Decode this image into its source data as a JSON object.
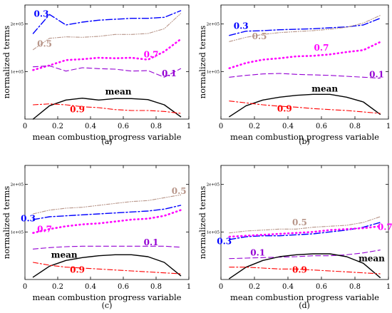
{
  "figure": {
    "xlabel": "mean combustion progress variable",
    "ylabel": "normalized terms",
    "x_ticks": [
      "0",
      "0.2",
      "0.4",
      "0.6",
      "0.8",
      "1"
    ],
    "y_ticks": [
      "1e+05",
      "2e+05"
    ],
    "colors": {
      "mean": "#000000",
      "0.1": "#9400d3",
      "0.3": "#0000ff",
      "0.5": "#b8968a",
      "0.7": "#ff00ff",
      "0.9": "#ff0000"
    }
  },
  "chart_data": [
    {
      "type": "line",
      "panel": "(a)",
      "xlabel": "mean combustion progress variable",
      "ylabel": "normalized terms",
      "xlim": [
        0,
        1
      ],
      "ylim": [
        0,
        240000
      ],
      "series": [
        {
          "name": "0.3",
          "x": [
            0.05,
            0.15,
            0.25,
            0.35,
            0.45,
            0.55,
            0.65,
            0.75,
            0.85,
            0.95
          ],
          "values": [
            180000,
            220000,
            198000,
            204000,
            208000,
            210000,
            212000,
            212000,
            214000,
            228000
          ]
        },
        {
          "name": "0.5",
          "x": [
            0.05,
            0.15,
            0.25,
            0.35,
            0.45,
            0.55,
            0.65,
            0.75,
            0.85,
            0.95
          ],
          "values": [
            146000,
            170000,
            173000,
            172000,
            174000,
            178000,
            178000,
            180000,
            190000,
            222000
          ]
        },
        {
          "name": "0.7",
          "x": [
            0.05,
            0.15,
            0.25,
            0.35,
            0.45,
            0.55,
            0.65,
            0.75,
            0.85,
            0.95
          ],
          "values": [
            103000,
            113000,
            124000,
            126000,
            129000,
            128000,
            129000,
            125000,
            142000,
            168000
          ]
        },
        {
          "name": "0.1",
          "x": [
            0.05,
            0.15,
            0.25,
            0.35,
            0.45,
            0.55,
            0.65,
            0.75,
            0.85,
            0.95
          ],
          "values": [
            110000,
            112000,
            101000,
            108000,
            106000,
            105000,
            101000,
            102000,
            88000,
            106000
          ]
        },
        {
          "name": "mean",
          "x": [
            0.05,
            0.15,
            0.25,
            0.35,
            0.45,
            0.55,
            0.65,
            0.75,
            0.85,
            0.95
          ],
          "values": [
            0,
            28000,
            40000,
            44000,
            40000,
            43000,
            43000,
            41000,
            30000,
            5000
          ]
        },
        {
          "name": "0.9",
          "x": [
            0.05,
            0.15,
            0.25,
            0.35,
            0.45,
            0.55,
            0.65,
            0.75,
            0.85,
            0.95
          ],
          "values": [
            30000,
            32000,
            30000,
            26000,
            24000,
            20000,
            18000,
            18000,
            16000,
            12000
          ]
        }
      ],
      "labels": [
        {
          "text": "0.3",
          "series": "0.3",
          "x": 0.1,
          "y": 215000
        },
        {
          "text": "0.5",
          "series": "0.5",
          "x": 0.12,
          "y": 152000
        },
        {
          "text": "0.7",
          "series": "0.7",
          "x": 0.77,
          "y": 130000
        },
        {
          "text": "0.1",
          "series": "0.1",
          "x": 0.88,
          "y": 90000
        },
        {
          "text": "mean",
          "series": "mean",
          "x": 0.57,
          "y": 52000
        },
        {
          "text": "0.9",
          "series": "0.9",
          "x": 0.32,
          "y": 14000
        }
      ]
    },
    {
      "type": "line",
      "panel": "(b)",
      "xlabel": "mean combustion progress variable",
      "ylabel": "normalized terms",
      "xlim": [
        0,
        1
      ],
      "ylim": [
        0,
        240000
      ],
      "series": [
        {
          "name": "0.3",
          "x": [
            0.05,
            0.15,
            0.25,
            0.35,
            0.45,
            0.55,
            0.65,
            0.75,
            0.85,
            0.95
          ],
          "values": [
            176000,
            185000,
            186000,
            188000,
            189000,
            190000,
            192000,
            194000,
            198000,
            212000
          ]
        },
        {
          "name": "0.5",
          "x": [
            0.05,
            0.15,
            0.25,
            0.35,
            0.45,
            0.55,
            0.65,
            0.75,
            0.85,
            0.95
          ],
          "values": [
            163000,
            172000,
            178000,
            182000,
            184000,
            186000,
            189000,
            193000,
            202000,
            218000
          ]
        },
        {
          "name": "0.7",
          "x": [
            0.05,
            0.15,
            0.25,
            0.35,
            0.45,
            0.55,
            0.65,
            0.75,
            0.85,
            0.95
          ],
          "values": [
            107000,
            118000,
            125000,
            128000,
            132000,
            133000,
            136000,
            141000,
            145000,
            162000
          ]
        },
        {
          "name": "0.1",
          "x": [
            0.05,
            0.15,
            0.25,
            0.35,
            0.45,
            0.55,
            0.65,
            0.75,
            0.85,
            0.95
          ],
          "values": [
            88000,
            92000,
            95000,
            96000,
            94000,
            93000,
            92000,
            90000,
            88000,
            86000
          ]
        },
        {
          "name": "mean",
          "x": [
            0.05,
            0.15,
            0.25,
            0.35,
            0.45,
            0.55,
            0.65,
            0.75,
            0.85,
            0.95
          ],
          "values": [
            5000,
            28000,
            40000,
            46000,
            50000,
            52000,
            52000,
            46000,
            36000,
            10000
          ]
        },
        {
          "name": "0.9",
          "x": [
            0.05,
            0.15,
            0.25,
            0.35,
            0.45,
            0.55,
            0.65,
            0.75,
            0.85,
            0.95
          ],
          "values": [
            38000,
            34000,
            30000,
            27000,
            25000,
            22000,
            20000,
            18000,
            15000,
            12000
          ]
        }
      ],
      "labels": [
        {
          "text": "0.3",
          "series": "0.3",
          "x": 0.12,
          "y": 190000
        },
        {
          "text": "0.5",
          "series": "0.5",
          "x": 0.23,
          "y": 168000
        },
        {
          "text": "0.7",
          "series": "0.7",
          "x": 0.6,
          "y": 144000
        },
        {
          "text": "0.1",
          "series": "0.1",
          "x": 0.93,
          "y": 88000
        },
        {
          "text": "mean",
          "series": "mean",
          "x": 0.62,
          "y": 58000
        },
        {
          "text": "0.9",
          "series": "0.9",
          "x": 0.38,
          "y": 16000
        }
      ]
    },
    {
      "type": "line",
      "panel": "(c)",
      "xlabel": "mean combustion progress variable",
      "ylabel": "normalized terms",
      "xlim": [
        0,
        1
      ],
      "ylim": [
        0,
        240000
      ],
      "series": [
        {
          "name": "0.5",
          "x": [
            0.05,
            0.15,
            0.25,
            0.35,
            0.45,
            0.55,
            0.65,
            0.75,
            0.85,
            0.95
          ],
          "values": [
            138000,
            146000,
            150000,
            152000,
            156000,
            160000,
            164000,
            166000,
            172000,
            178000
          ]
        },
        {
          "name": "0.3",
          "x": [
            0.05,
            0.15,
            0.25,
            0.35,
            0.45,
            0.55,
            0.65,
            0.75,
            0.85,
            0.95
          ],
          "values": [
            126000,
            132000,
            134000,
            136000,
            138000,
            140000,
            142000,
            144000,
            148000,
            156000
          ]
        },
        {
          "name": "0.7",
          "x": [
            0.05,
            0.15,
            0.25,
            0.35,
            0.45,
            0.55,
            0.65,
            0.75,
            0.85,
            0.95
          ],
          "values": [
            98000,
            106000,
            112000,
            116000,
            118000,
            122000,
            126000,
            128000,
            134000,
            146000
          ]
        },
        {
          "name": "0.1",
          "x": [
            0.05,
            0.15,
            0.25,
            0.35,
            0.45,
            0.55,
            0.65,
            0.75,
            0.85,
            0.95
          ],
          "values": [
            64000,
            67000,
            69000,
            70000,
            70000,
            70000,
            70000,
            70000,
            70000,
            68000
          ]
        },
        {
          "name": "mean",
          "x": [
            0.05,
            0.15,
            0.25,
            0.35,
            0.45,
            0.55,
            0.65,
            0.75,
            0.85,
            0.95
          ],
          "values": [
            5000,
            28000,
            40000,
            46000,
            50000,
            52000,
            52000,
            48000,
            36000,
            8000
          ]
        },
        {
          "name": "0.9",
          "x": [
            0.05,
            0.15,
            0.25,
            0.35,
            0.45,
            0.55,
            0.65,
            0.75,
            0.85,
            0.95
          ],
          "values": [
            36000,
            30000,
            26000,
            24000,
            22000,
            20000,
            18000,
            16000,
            14000,
            12000
          ]
        }
      ],
      "labels": [
        {
          "text": "0.5",
          "series": "0.5",
          "x": 0.94,
          "y": 180000
        },
        {
          "text": "0.3",
          "series": "0.3",
          "x": 0.02,
          "y": 122000
        },
        {
          "text": "0.7",
          "series": "0.7",
          "x": 0.12,
          "y": 100000
        },
        {
          "text": "0.1",
          "series": "0.1",
          "x": 0.77,
          "y": 72000
        },
        {
          "text": "mean",
          "series": "mean",
          "x": 0.24,
          "y": 46000
        },
        {
          "text": "0.9",
          "series": "0.9",
          "x": 0.32,
          "y": 14000
        }
      ]
    },
    {
      "type": "line",
      "panel": "(d)",
      "xlabel": "mean combustion progress variable",
      "ylabel": "normalized terms",
      "xlim": [
        0,
        1
      ],
      "ylim": [
        0,
        240000
      ],
      "series": [
        {
          "name": "0.5",
          "x": [
            0.05,
            0.15,
            0.25,
            0.35,
            0.45,
            0.55,
            0.65,
            0.75,
            0.85,
            0.95
          ],
          "values": [
            98000,
            102000,
            104000,
            106000,
            106000,
            110000,
            112000,
            114000,
            120000,
            132000
          ]
        },
        {
          "name": "0.3",
          "x": [
            0.05,
            0.15,
            0.25,
            0.35,
            0.45,
            0.55,
            0.65,
            0.75,
            0.85,
            0.95
          ],
          "values": [
            84000,
            90000,
            92000,
            92000,
            94000,
            96000,
            100000,
            104000,
            110000,
            120000
          ]
        },
        {
          "name": "0.7",
          "x": [
            0.05,
            0.15,
            0.25,
            0.35,
            0.45,
            0.55,
            0.65,
            0.75,
            0.85,
            0.95
          ],
          "values": [
            90000,
            92000,
            94000,
            96000,
            98000,
            100000,
            104000,
            106000,
            108000,
            112000
          ]
        },
        {
          "name": "0.1",
          "x": [
            0.05,
            0.15,
            0.25,
            0.35,
            0.45,
            0.55,
            0.65,
            0.75,
            0.85,
            0.95
          ],
          "values": [
            44000,
            45000,
            46000,
            47000,
            48000,
            50000,
            50000,
            52000,
            56000,
            62000
          ]
        },
        {
          "name": "mean",
          "x": [
            0.05,
            0.15,
            0.25,
            0.35,
            0.45,
            0.55,
            0.65,
            0.75,
            0.85,
            0.95
          ],
          "values": [
            2000,
            26000,
            40000,
            48000,
            52000,
            54000,
            54000,
            48000,
            34000,
            4000
          ]
        },
        {
          "name": "0.9",
          "x": [
            0.05,
            0.15,
            0.25,
            0.35,
            0.45,
            0.55,
            0.65,
            0.75,
            0.85,
            0.95
          ],
          "values": [
            26000,
            26000,
            24000,
            22000,
            22000,
            20000,
            18000,
            16000,
            14000,
            12000
          ]
        }
      ],
      "labels": [
        {
          "text": "0.5",
          "series": "0.5",
          "x": 0.47,
          "y": 114000
        },
        {
          "text": "0.3",
          "series": "0.3",
          "x": 0.02,
          "y": 74000
        },
        {
          "text": "0.7",
          "series": "0.7",
          "x": 0.98,
          "y": 104000
        },
        {
          "text": "0.1",
          "series": "0.1",
          "x": 0.22,
          "y": 50000
        },
        {
          "text": "mean",
          "series": "mean",
          "x": 0.9,
          "y": 38000
        },
        {
          "text": "0.9",
          "series": "0.9",
          "x": 0.47,
          "y": 14000
        }
      ]
    }
  ]
}
